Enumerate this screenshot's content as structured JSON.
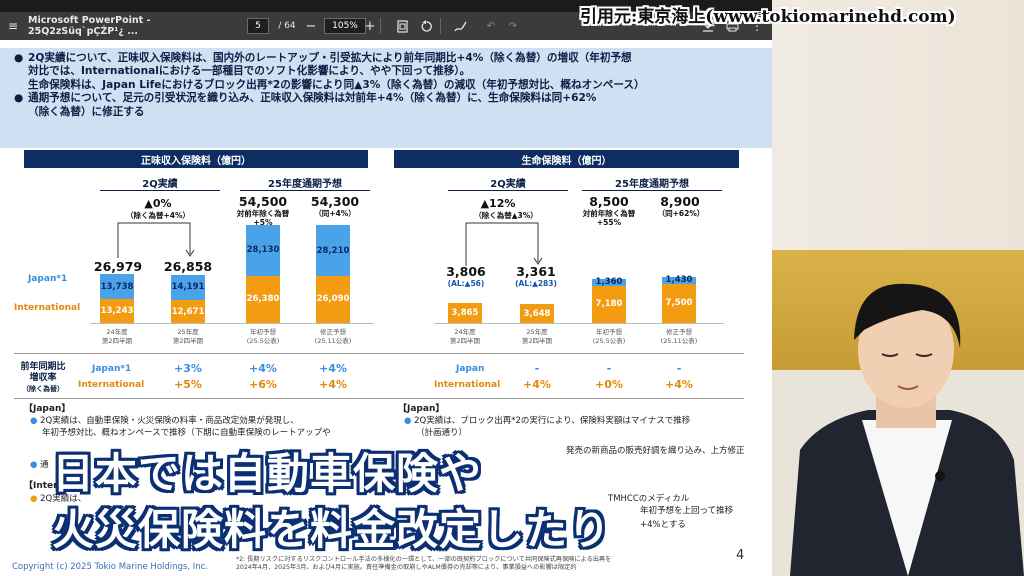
{
  "toolbar": {
    "title": "Microsoft PowerPoint - 25Q2zSüq`pÇŹP¹¿ ...",
    "page_current": "5",
    "page_total": "/ 64",
    "zoom": "105%",
    "zoom_out": "−",
    "zoom_in": "+"
  },
  "credit": "引用元:東京海上(www.tokiomarinehd.com)",
  "summary": {
    "b1_l1": "2Q実績について、正味収入保険料は、国内外のレートアップ・引受拡大により前年同期比+4%（除く為替）の増収（年初予想",
    "b1_l2": "対比では、Internationalにおける一部種目でのソフト化影響により、やや下回って推移）。",
    "b1_l3": "生命保険料は、Japan Lifeにおけるブロック出再*2の影響により同▲3%（除く為替）の減収（年初予想対比、概ねオンペース）",
    "b2_l1": "通期予想について、足元の引受状況を織り込み、正味収入保険料は対前年+4%（除く為替）に、生命保険料は同+62%",
    "b2_l2": "（除く為替）に修正する"
  },
  "left": {
    "header": "正味収入保険料（億円）",
    "q2_label": "2Q実績",
    "fy_label": "25年度通期予想",
    "q2_change": "▲0%",
    "q2_change_note": "（除く為替+4%）",
    "fy1_note": "対前年除く為替\n+5%",
    "fy2_note": "（同+4%）",
    "legend_japan": "Japan*1",
    "legend_intl": "International"
  },
  "right_chart": {
    "header": "生命保険料（億円）",
    "q2_label": "2Q実績",
    "fy_label": "25年度通期予想",
    "q2_change": "▲12%",
    "q2_change_note": "（除く為替▲3%）",
    "fy1_note": "対前年除く為替\n+55%",
    "fy2_note": "（同+62%）",
    "al1": "(AL:▲56)",
    "al2": "(AL:▲283)"
  },
  "chart_data": [
    {
      "type": "bar",
      "title": "正味収入保険料（億円）",
      "categories": [
        "24年度 第2四半期",
        "25年度 第2四半期",
        "年初予想 (25.5公表)",
        "修正予想 (25.11公表)"
      ],
      "series": [
        {
          "name": "Japan*1",
          "values": [
            13738,
            14191,
            28130,
            28210
          ]
        },
        {
          "name": "International",
          "values": [
            13243,
            12671,
            26380,
            26090
          ]
        }
      ],
      "totals": [
        "26,979",
        "26,858",
        "54,500",
        "54,300"
      ],
      "seg_labels": {
        "japan": [
          "13,738",
          "14,191",
          "28,130",
          "28,210"
        ],
        "intl": [
          "13,243",
          "12,671",
          "26,380",
          "26,090"
        ]
      }
    },
    {
      "type": "bar",
      "title": "生命保険料（億円）",
      "categories": [
        "24年度 第2四半期",
        "25年度 第2四半期",
        "年初予想 (25.5公表)",
        "修正予想 (25.11公表)"
      ],
      "series": [
        {
          "name": "Japan",
          "values": [
            0,
            0,
            1360,
            1430
          ]
        },
        {
          "name": "International",
          "values": [
            3865,
            3648,
            7180,
            7500
          ]
        }
      ],
      "totals": [
        "3,806",
        "3,361",
        "8,500",
        "8,900"
      ],
      "seg_labels": {
        "japan": [
          "",
          "",
          "1,360",
          "1,430"
        ],
        "intl": [
          "3,865",
          "3,648",
          "7,180",
          "7,500"
        ]
      }
    }
  ],
  "categories_text": [
    [
      "24年度",
      "第2四半期"
    ],
    [
      "25年度",
      "第2四半期"
    ],
    [
      "年初予想",
      "(25.5公表)"
    ],
    [
      "修正予想",
      "(25.11公表)"
    ]
  ],
  "growth": {
    "label1": "前年同期比",
    "label2": "増収率",
    "label3": "（除く為替）",
    "row_japan": "Japan*1",
    "row_intl": "International",
    "left_japan": [
      "+3%",
      "+4%",
      "+4%"
    ],
    "left_intl": [
      "+5%",
      "+6%",
      "+4%"
    ],
    "right_row_japan": "Japan",
    "right_row_intl": "International",
    "right_japan": [
      "-",
      "-",
      "-"
    ],
    "right_intl": [
      "+4%",
      "+0%",
      "+4%"
    ]
  },
  "bottom": {
    "left_heading": "【Japan】",
    "left_b1": "2Q実績は、自動車保険・火災保険の料率・商品改定効果が発現し、",
    "left_b1b": "年初予想対比、概ねオンペースで推移（下期に自動車保険のレートアップや",
    "left_b2": "通",
    "left_heading2": "【Inter",
    "left_b3": "2Q実績は、",
    "right_heading": "【Japan】",
    "right_b1": "2Q実績は、ブロック出再*2の実行により、保険料実額はマイナスで推移",
    "right_b1b": "（計画通り）",
    "right_b2": "発売の新商品の販売好調を織り込み、上方修正",
    "right_b3": "TMHCCのメディカル",
    "right_b4": "年初予想を上回って推移",
    "right_b5": "+4%とする"
  },
  "footer": {
    "copyright": "Copyright (c) 2025 Tokio Marine Holdings, Inc.",
    "page": "4",
    "note1": "*2: 長期リスクに対するリスクコントロール手法の多様化の一環として、一部の既契約ブロックについて共同保険式再保険による出再を",
    "note2": "2024年4月、2025年3月、および4月に実施。責任準備金の取崩しやALM債券の売却等により、事業損益への影響は限定的"
  },
  "subtitle": {
    "line1": "日本では自動車保険や",
    "line2": "火災保険料を料金改定したり"
  }
}
